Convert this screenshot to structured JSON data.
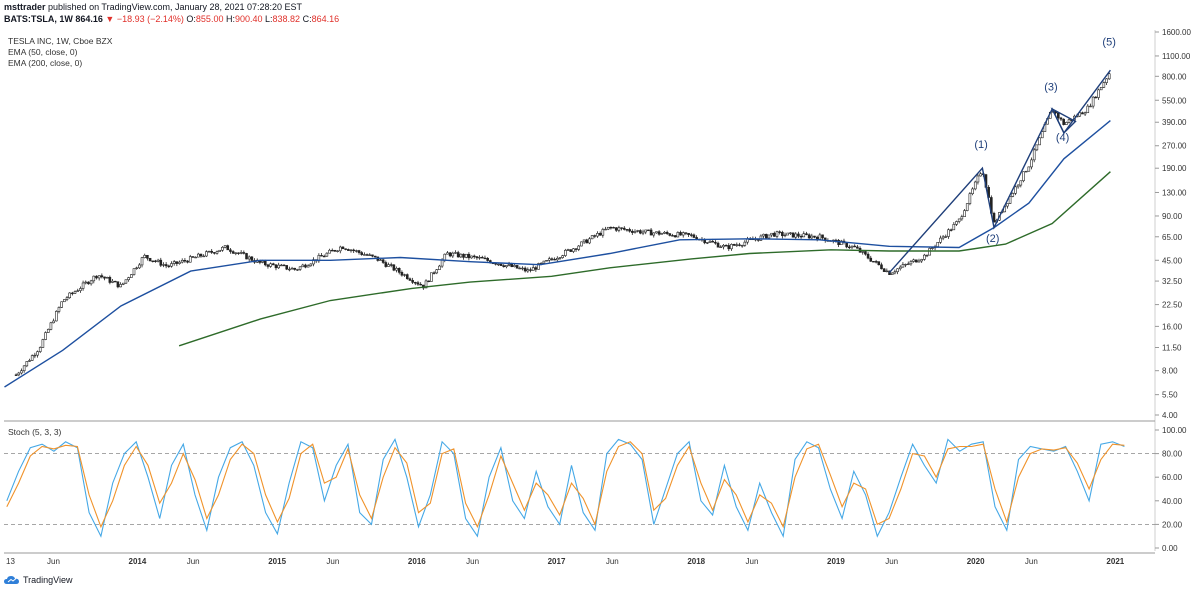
{
  "header": {
    "author": "msttrader",
    "published_text": "published on TradingView.com, January 28, 2021 07:28:20 EST",
    "symbol_line": "BATS:TSLA, 1W",
    "last": "864.16",
    "change": "−18.93 (−2.14%)",
    "open_label": "O:",
    "open": "855.00",
    "high_label": "H:",
    "high": "900.40",
    "low_label": "L:",
    "low": "838.82",
    "close_label": "C:",
    "close": "864.16"
  },
  "legend": {
    "title": "TESLA INC, 1W, Cboe BZX",
    "ema50": "EMA (50, close, 0)",
    "ema200": "EMA (200, close, 0)",
    "stoch": "Stoch (5, 3, 3)"
  },
  "footer": {
    "brand": "TradingView"
  },
  "colors": {
    "candle": "#222222",
    "ema50": "#1e50a0",
    "ema200": "#2e6b2a",
    "wave": "#1f3f7a",
    "stoch_k": "#45a8e6",
    "stoch_d": "#f0932b",
    "band": "#888888"
  },
  "chart_data": [
    {
      "type": "candlestick",
      "title": "TESLA INC, 1W, Cboe BZX",
      "y_scale": "log",
      "y_ticks": [
        "1600.00",
        "1100.00",
        "800.00",
        "550.00",
        "390.00",
        "270.00",
        "190.00",
        "130.00",
        "90.00",
        "65.00",
        "45.00",
        "32.50",
        "22.50",
        "16.00",
        "11.50",
        "8.00",
        "5.50",
        "4.00"
      ],
      "x_ticks": [
        "13",
        "Jun",
        "2014",
        "Jun",
        "2015",
        "Jun",
        "2016",
        "Jun",
        "2017",
        "Jun",
        "2018",
        "Jun",
        "2019",
        "Jun",
        "2020",
        "Jun",
        "2021"
      ],
      "price_path": [
        {
          "date": "2013-03",
          "close": 7.5
        },
        {
          "date": "2013-05",
          "close": 11.5
        },
        {
          "date": "2013-07",
          "close": 24
        },
        {
          "date": "2013-10",
          "close": 36
        },
        {
          "date": "2013-12",
          "close": 30
        },
        {
          "date": "2014-02",
          "close": 48
        },
        {
          "date": "2014-04",
          "close": 41
        },
        {
          "date": "2014-06",
          "close": 46
        },
        {
          "date": "2014-09",
          "close": 55
        },
        {
          "date": "2014-12",
          "close": 43
        },
        {
          "date": "2015-03",
          "close": 39
        },
        {
          "date": "2015-07",
          "close": 56
        },
        {
          "date": "2015-10",
          "close": 46
        },
        {
          "date": "2016-02",
          "close": 30
        },
        {
          "date": "2016-04",
          "close": 50
        },
        {
          "date": "2016-07",
          "close": 46
        },
        {
          "date": "2016-11",
          "close": 38
        },
        {
          "date": "2017-03",
          "close": 55
        },
        {
          "date": "2017-06",
          "close": 75
        },
        {
          "date": "2017-09",
          "close": 70
        },
        {
          "date": "2018-01",
          "close": 66
        },
        {
          "date": "2018-04",
          "close": 55
        },
        {
          "date": "2018-08",
          "close": 68
        },
        {
          "date": "2018-12",
          "close": 65
        },
        {
          "date": "2019-03",
          "close": 55
        },
        {
          "date": "2019-06",
          "close": 37
        },
        {
          "date": "2019-09",
          "close": 48
        },
        {
          "date": "2019-12",
          "close": 84
        },
        {
          "date": "2020-02",
          "close": 190
        },
        {
          "date": "2020-03",
          "close": 80
        },
        {
          "date": "2020-06",
          "close": 200
        },
        {
          "date": "2020-08",
          "close": 480
        },
        {
          "date": "2020-09",
          "close": 380
        },
        {
          "date": "2020-11",
          "close": 480
        },
        {
          "date": "2021-01",
          "close": 864.16
        }
      ],
      "series": [
        {
          "name": "EMA (50, close, 0)",
          "values": [
            {
              "date": "2013-02",
              "value": 6.2
            },
            {
              "date": "2013-07",
              "value": 11
            },
            {
              "date": "2013-12",
              "value": 22
            },
            {
              "date": "2014-06",
              "value": 38
            },
            {
              "date": "2014-12",
              "value": 45
            },
            {
              "date": "2015-06",
              "value": 45
            },
            {
              "date": "2015-12",
              "value": 47
            },
            {
              "date": "2016-06",
              "value": 44
            },
            {
              "date": "2016-12",
              "value": 42
            },
            {
              "date": "2017-06",
              "value": 50
            },
            {
              "date": "2017-12",
              "value": 62
            },
            {
              "date": "2018-06",
              "value": 63
            },
            {
              "date": "2018-12",
              "value": 62
            },
            {
              "date": "2019-06",
              "value": 56
            },
            {
              "date": "2019-12",
              "value": 55
            },
            {
              "date": "2020-03",
              "value": 75
            },
            {
              "date": "2020-06",
              "value": 110
            },
            {
              "date": "2020-09",
              "value": 220
            },
            {
              "date": "2021-01",
              "value": 400
            }
          ]
        },
        {
          "name": "EMA (200, close, 0)",
          "values": [
            {
              "date": "2014-05",
              "value": 11.8
            },
            {
              "date": "2014-12",
              "value": 18
            },
            {
              "date": "2015-06",
              "value": 24
            },
            {
              "date": "2016-01",
              "value": 29
            },
            {
              "date": "2016-06",
              "value": 32
            },
            {
              "date": "2017-01",
              "value": 35
            },
            {
              "date": "2017-06",
              "value": 40
            },
            {
              "date": "2018-01",
              "value": 46
            },
            {
              "date": "2018-06",
              "value": 50
            },
            {
              "date": "2019-01",
              "value": 53
            },
            {
              "date": "2019-06",
              "value": 52
            },
            {
              "date": "2019-12",
              "value": 52
            },
            {
              "date": "2020-04",
              "value": 58
            },
            {
              "date": "2020-08",
              "value": 80
            },
            {
              "date": "2021-01",
              "value": 180
            }
          ]
        }
      ],
      "annotations": [
        {
          "label": "(1)",
          "date": "2020-02",
          "price": 260
        },
        {
          "label": "(2)",
          "date": "2020-03",
          "price": 60
        },
        {
          "label": "(3)",
          "date": "2020-08",
          "price": 640
        },
        {
          "label": "(4)",
          "date": "2020-09",
          "price": 290
        },
        {
          "label": "(5)",
          "date": "2021-01",
          "price": 1300
        }
      ],
      "wave_lines": [
        [
          {
            "date": "2019-06",
            "price": 37
          },
          {
            "date": "2020-02",
            "price": 190
          },
          {
            "date": "2020-03",
            "price": 75
          },
          {
            "date": "2020-08",
            "price": 480
          },
          {
            "date": "2020-09",
            "price": 330
          },
          {
            "date": "2021-01",
            "price": 880
          }
        ],
        [
          {
            "date": "2020-08",
            "price": 480
          },
          {
            "date": "2020-10",
            "price": 395
          },
          {
            "date": "2020-09",
            "price": 330
          }
        ]
      ]
    },
    {
      "type": "line",
      "title": "Stoch (5, 3, 3)",
      "ylim": [
        0,
        100
      ],
      "y_ticks": [
        "100.00",
        "80.00",
        "60.00",
        "40.00",
        "20.00",
        "0.00"
      ],
      "bands": [
        80,
        20
      ],
      "series": [
        {
          "name": "K",
          "values": [
            40,
            65,
            85,
            88,
            82,
            90,
            85,
            30,
            10,
            55,
            80,
            90,
            60,
            25,
            70,
            88,
            45,
            15,
            60,
            85,
            90,
            70,
            30,
            12,
            55,
            90,
            85,
            40,
            70,
            88,
            30,
            20,
            75,
            92,
            60,
            18,
            45,
            90,
            80,
            25,
            10,
            60,
            85,
            40,
            25,
            65,
            35,
            20,
            70,
            30,
            15,
            80,
            92,
            88,
            75,
            20,
            50,
            80,
            90,
            40,
            28,
            70,
            35,
            15,
            55,
            30,
            10,
            75,
            90,
            85,
            50,
            25,
            65,
            45,
            10,
            30,
            60,
            88,
            70,
            55,
            92,
            82,
            88,
            90,
            35,
            15,
            75,
            86,
            84,
            82,
            86,
            65,
            40,
            88,
            90,
            86
          ]
        },
        {
          "name": "D",
          "values": [
            35,
            55,
            78,
            86,
            84,
            87,
            86,
            45,
            18,
            40,
            70,
            86,
            70,
            38,
            55,
            80,
            58,
            25,
            45,
            75,
            88,
            80,
            45,
            22,
            42,
            80,
            88,
            55,
            60,
            84,
            45,
            25,
            60,
            85,
            72,
            30,
            38,
            80,
            84,
            38,
            18,
            45,
            78,
            55,
            32,
            55,
            45,
            28,
            55,
            42,
            20,
            65,
            86,
            90,
            80,
            32,
            42,
            70,
            86,
            55,
            32,
            58,
            45,
            22,
            45,
            38,
            18,
            60,
            84,
            88,
            62,
            35,
            55,
            50,
            20,
            25,
            50,
            80,
            78,
            60,
            84,
            86,
            86,
            88,
            50,
            22,
            60,
            80,
            84,
            83,
            85,
            72,
            50,
            75,
            88,
            87
          ]
        }
      ]
    }
  ]
}
